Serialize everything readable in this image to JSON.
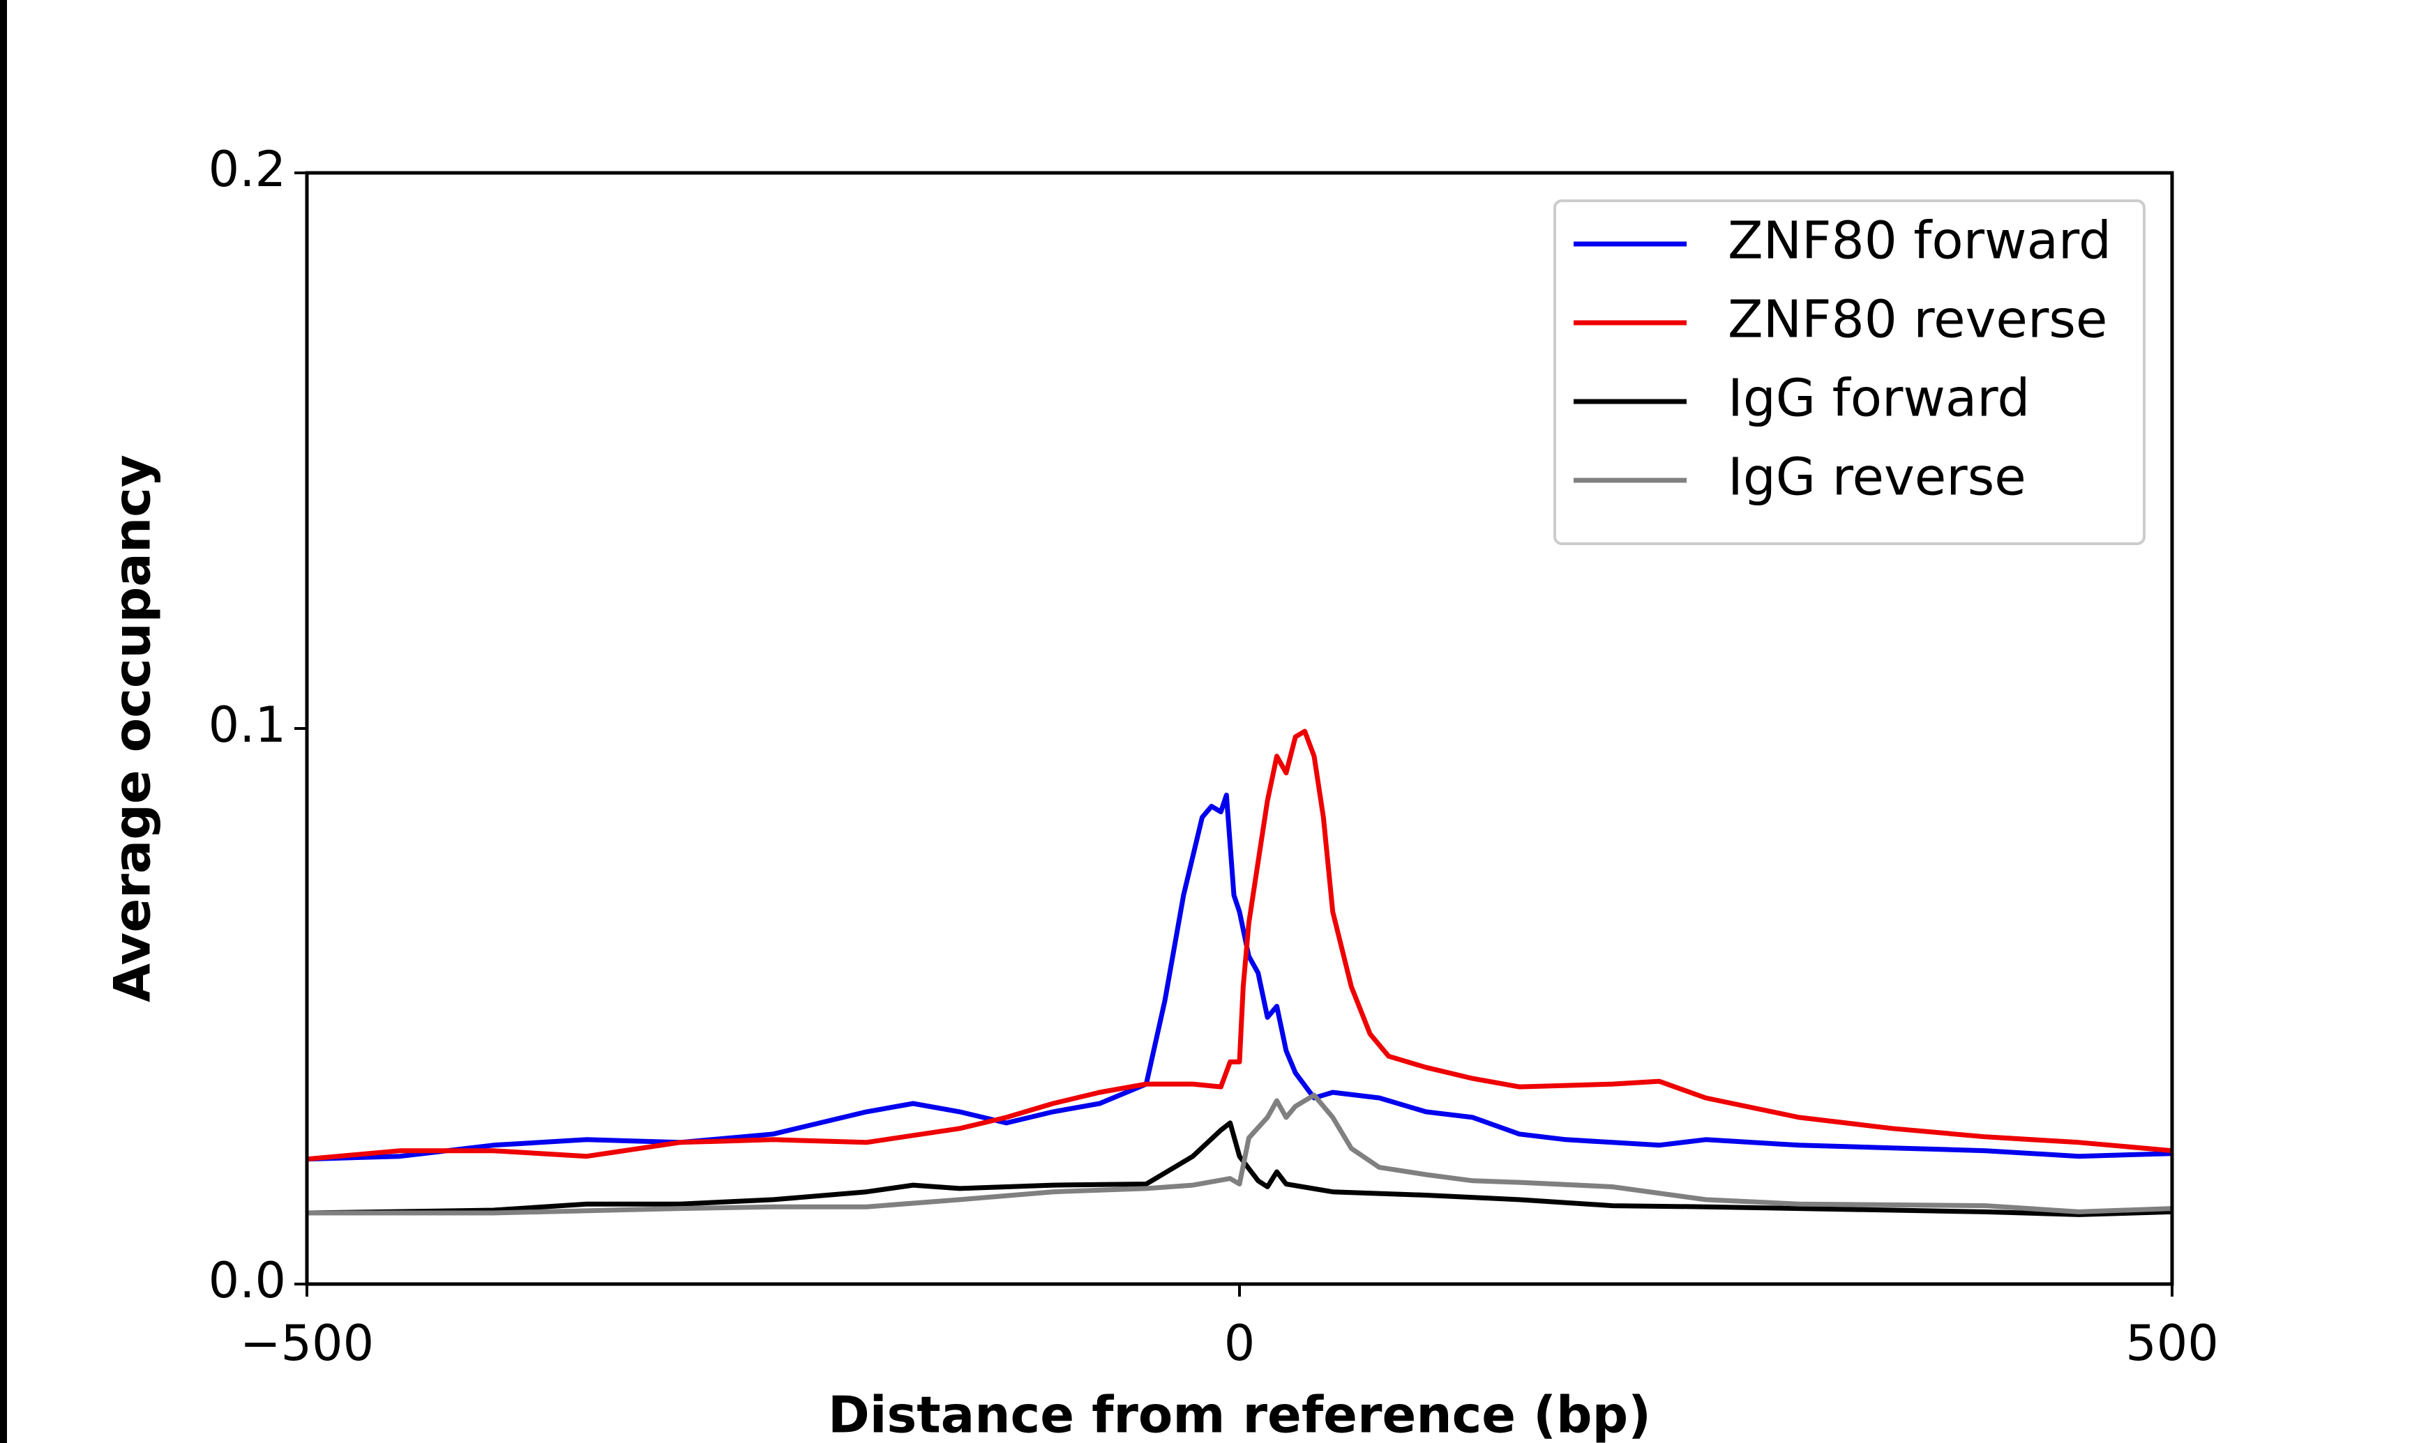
{
  "chart_data": {
    "type": "line",
    "xlabel": "Distance from reference (bp)",
    "ylabel": "Average occupancy",
    "xlim": [
      -500,
      500
    ],
    "ylim": [
      0,
      0.2
    ],
    "xticks": [
      {
        "value": -500,
        "label": "−500"
      },
      0,
      500
    ],
    "yticks": [
      {
        "value": 0,
        "label": "0.0"
      },
      0.1,
      0.2
    ],
    "legend": "upper right",
    "series": [
      {
        "name": "ZNF80 forward",
        "color": "#0000ee",
        "x": [
          -500,
          -450,
          -400,
          -350,
          -300,
          -250,
          -200,
          -175,
          -150,
          -125,
          -100,
          -75,
          -50,
          -40,
          -30,
          -20,
          -15,
          -10,
          -7,
          -3,
          0,
          5,
          10,
          15,
          20,
          25,
          30,
          40,
          50,
          75,
          100,
          125,
          150,
          175,
          200,
          225,
          250,
          300,
          350,
          400,
          450,
          500
        ],
        "values": [
          0.0225,
          0.023,
          0.025,
          0.026,
          0.0255,
          0.027,
          0.031,
          0.0325,
          0.031,
          0.029,
          0.031,
          0.0325,
          0.036,
          0.051,
          0.07,
          0.084,
          0.086,
          0.085,
          0.088,
          0.07,
          0.067,
          0.059,
          0.056,
          0.048,
          0.05,
          0.042,
          0.038,
          0.0335,
          0.0345,
          0.0335,
          0.031,
          0.03,
          0.027,
          0.026,
          0.0255,
          0.025,
          0.026,
          0.025,
          0.0245,
          0.024,
          0.023,
          0.0235
        ]
      },
      {
        "name": "ZNF80 reverse",
        "color": "#ee0000",
        "x": [
          -500,
          -450,
          -400,
          -350,
          -300,
          -250,
          -200,
          -150,
          -125,
          -100,
          -75,
          -50,
          -25,
          -10,
          -5,
          0,
          2,
          5,
          10,
          15,
          20,
          25,
          30,
          35,
          40,
          45,
          50,
          60,
          70,
          80,
          100,
          125,
          150,
          200,
          225,
          250,
          300,
          350,
          400,
          450,
          500
        ],
        "values": [
          0.0225,
          0.024,
          0.024,
          0.023,
          0.0255,
          0.026,
          0.0255,
          0.028,
          0.03,
          0.0325,
          0.0345,
          0.036,
          0.036,
          0.0355,
          0.04,
          0.04,
          0.0535,
          0.065,
          0.076,
          0.087,
          0.095,
          0.092,
          0.0985,
          0.0995,
          0.095,
          0.084,
          0.067,
          0.0535,
          0.045,
          0.041,
          0.039,
          0.037,
          0.0355,
          0.036,
          0.0365,
          0.0335,
          0.03,
          0.028,
          0.0265,
          0.0255,
          0.024
        ]
      },
      {
        "name": "IgG forward",
        "color": "#000000",
        "x": [
          -500,
          -400,
          -350,
          -300,
          -250,
          -200,
          -175,
          -150,
          -100,
          -50,
          -25,
          -10,
          -5,
          0,
          10,
          15,
          20,
          25,
          50,
          100,
          150,
          200,
          250,
          300,
          400,
          450,
          500
        ],
        "values": [
          0.0128,
          0.0133,
          0.0144,
          0.0144,
          0.0152,
          0.0166,
          0.0178,
          0.0172,
          0.0178,
          0.018,
          0.023,
          0.0277,
          0.029,
          0.023,
          0.0186,
          0.0175,
          0.0202,
          0.018,
          0.0166,
          0.016,
          0.0152,
          0.0141,
          0.0139,
          0.0136,
          0.013,
          0.0125,
          0.013
        ]
      },
      {
        "name": "IgG reverse",
        "color": "#808080",
        "x": [
          -500,
          -400,
          -300,
          -250,
          -200,
          -150,
          -100,
          -50,
          -25,
          -5,
          0,
          5,
          15,
          20,
          25,
          30,
          40,
          50,
          60,
          75,
          100,
          125,
          150,
          200,
          250,
          300,
          400,
          450,
          500
        ],
        "values": [
          0.0128,
          0.0128,
          0.0136,
          0.0139,
          0.0139,
          0.0152,
          0.0166,
          0.0172,
          0.0178,
          0.019,
          0.018,
          0.0263,
          0.03,
          0.033,
          0.03,
          0.032,
          0.034,
          0.03,
          0.0244,
          0.021,
          0.0197,
          0.0186,
          0.0183,
          0.0175,
          0.0152,
          0.0144,
          0.0141,
          0.013,
          0.0136
        ]
      }
    ]
  }
}
